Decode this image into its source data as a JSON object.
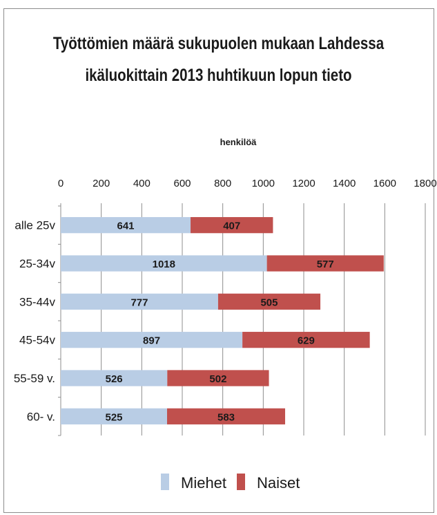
{
  "chart_data": {
    "type": "bar",
    "stacked": true,
    "orientation": "horizontal",
    "title_lines": [
      "Työttömien määrä sukupuolen mukaan Lahdessa",
      "ikäluokittain 2013 huhtikuun lopun tieto"
    ],
    "xlabel": "henkilöä",
    "xlim": [
      0,
      1800
    ],
    "xticks": [
      0,
      200,
      400,
      600,
      800,
      1000,
      1200,
      1400,
      1600,
      1800
    ],
    "axis_position": "top",
    "gridlines": true,
    "legend_position": "bottom",
    "categories": [
      "alle 25v",
      "25-34v",
      "35-44v",
      "45-54v",
      "55-59 v.",
      "60- v."
    ],
    "series": [
      {
        "name": "Miehet",
        "color": "#b9cde5",
        "values": [
          641,
          1018,
          777,
          897,
          526,
          525
        ]
      },
      {
        "name": "Naiset",
        "color": "#c0504d",
        "values": [
          407,
          577,
          505,
          629,
          502,
          583
        ]
      }
    ]
  }
}
